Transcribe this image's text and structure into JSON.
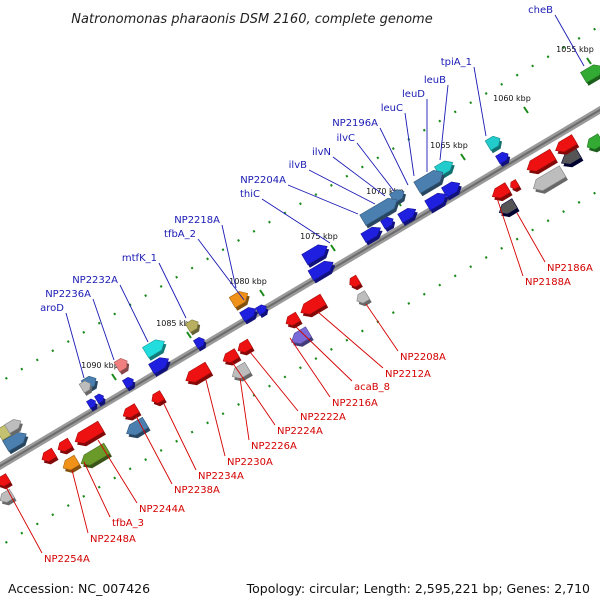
{
  "title": "Natronomonas pharaonis DSM 2160, complete genome",
  "accession": "Accession: NC_007426",
  "summary": "Topology: circular; Length: 2,595,221 bp; Genes: 2,710",
  "colors": {
    "forward_label": "#1a1ab4",
    "reverse_label": "#d40000",
    "backbone": "#8a8a8a",
    "tick": "#1a8a1a"
  },
  "ticks": [
    {
      "label": "1055 kbp",
      "pos": 1055
    },
    {
      "label": "1060 kbp",
      "pos": 1060
    },
    {
      "label": "1065 kbp",
      "pos": 1065
    },
    {
      "label": "1070 kbp",
      "pos": 1070
    },
    {
      "label": "1075 kbp",
      "pos": 1075
    },
    {
      "label": "1080 kbp",
      "pos": 1080
    },
    {
      "label": "1085 kbp",
      "pos": 1085
    },
    {
      "label": "1090 kbp",
      "pos": 1090
    }
  ],
  "forward_genes": [
    {
      "name": "cheB"
    },
    {
      "name": "tpiA_1"
    },
    {
      "name": "leuB"
    },
    {
      "name": "leuD"
    },
    {
      "name": "leuC"
    },
    {
      "name": "NP2196A"
    },
    {
      "name": "ilvC"
    },
    {
      "name": "ilvN"
    },
    {
      "name": "ilvB"
    },
    {
      "name": "NP2204A"
    },
    {
      "name": "thiC"
    },
    {
      "name": "NP2218A"
    },
    {
      "name": "tfbA_2"
    },
    {
      "name": "mtfK_1"
    },
    {
      "name": "NP2232A"
    },
    {
      "name": "NP2236A"
    },
    {
      "name": "aroD"
    }
  ],
  "reverse_genes": [
    {
      "name": "NP2186A"
    },
    {
      "name": "NP2188A"
    },
    {
      "name": "NP2208A"
    },
    {
      "name": "NP2212A"
    },
    {
      "name": "acaB_8"
    },
    {
      "name": "NP2216A"
    },
    {
      "name": "NP2222A"
    },
    {
      "name": "NP2224A"
    },
    {
      "name": "NP2226A"
    },
    {
      "name": "NP2230A"
    },
    {
      "name": "NP2234A"
    },
    {
      "name": "NP2238A"
    },
    {
      "name": "NP2244A"
    },
    {
      "name": "tfbA_3"
    },
    {
      "name": "NP2248A"
    },
    {
      "name": "NP2254A"
    }
  ]
}
